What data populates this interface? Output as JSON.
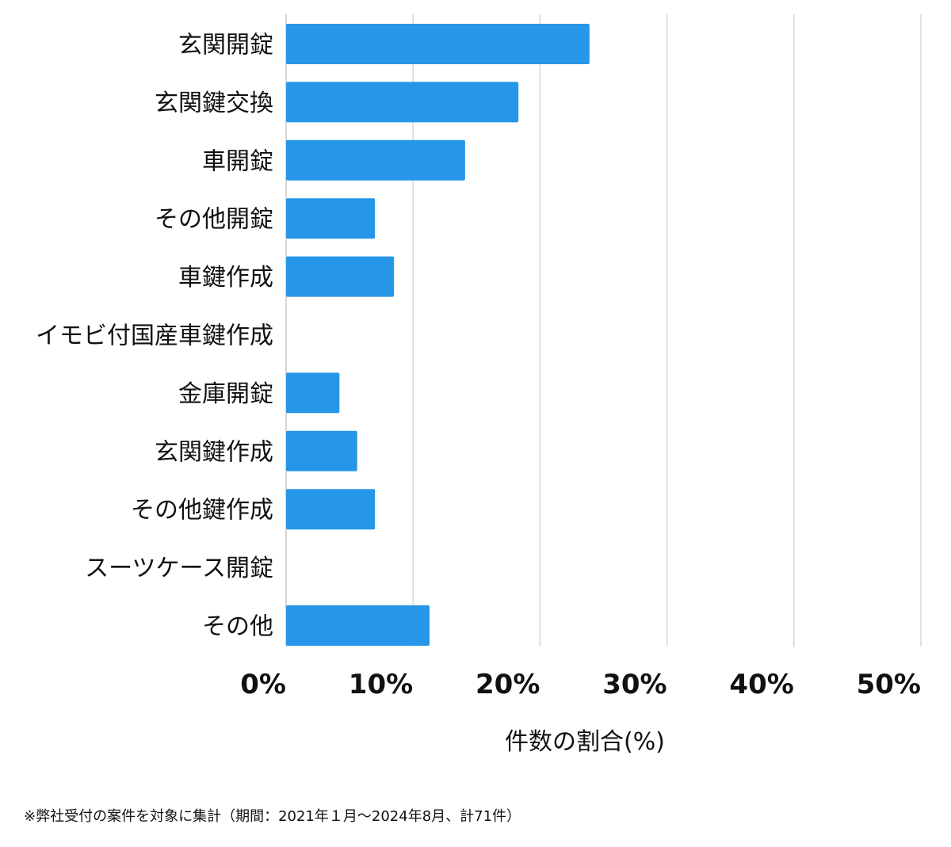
{
  "chart_data": {
    "type": "bar",
    "orientation": "horizontal",
    "categories": [
      "玄関開錠",
      "玄関鍵交換",
      "車開錠",
      "その他開錠",
      "車鍵作成",
      "イモビ付国産車鍵作成",
      "金庫開錠",
      "玄関鍵作成",
      "その他鍵作成",
      "スーツケース開錠",
      "その他"
    ],
    "values": [
      23.9,
      18.3,
      14.1,
      7.0,
      8.5,
      0,
      4.2,
      5.6,
      7.0,
      0,
      11.3
    ],
    "xlabel": "件数の割合(%)",
    "xlim": [
      0,
      50
    ],
    "xticks": [
      "0%",
      "10%",
      "20%",
      "30%",
      "40%",
      "50%"
    ],
    "grid": "vertical",
    "bar_color": "#2696e8",
    "grid_color": "#cccccc"
  },
  "footnote": "※弊社受付の案件を対象に集計（期間：2021年１月〜2024年8月、計71件）"
}
